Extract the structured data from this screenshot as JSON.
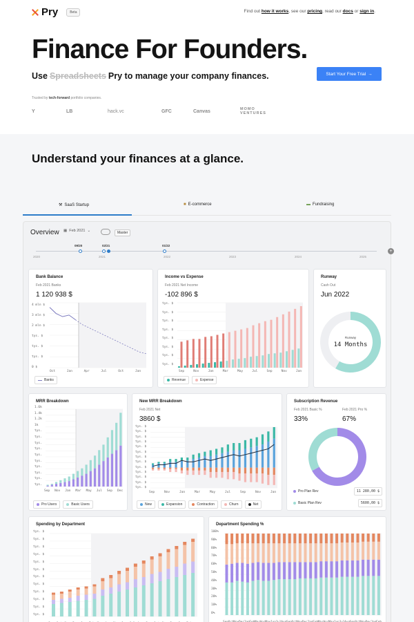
{
  "nav": {
    "logo": "Pry",
    "beta": "Beta",
    "links_prefix": "Find out",
    "how_it_works": "how it works",
    "see": ", see our",
    "pricing": "pricing",
    "read": ", read our",
    "docs": "docs",
    "or": "or",
    "sign_in": "sign in",
    "end": "."
  },
  "hero": {
    "title": "Finance For Founders.",
    "sub_use": "Use",
    "sub_strike": "Spreadsheets",
    "sub_rest": "Pry to manage your company finances.",
    "cta": "Start Your Free Trial",
    "cta_arrow": "→",
    "trusted_pre": "Trusted by",
    "trusted_bold": "tech-forward",
    "trusted_post": "portfolio companies.",
    "logos": [
      "Y",
      "LB",
      "hack.vc",
      "GFC",
      "Canvas",
      "MOMO VENTURES"
    ]
  },
  "section": {
    "title": "Understand your finances at a glance.",
    "tabs": [
      {
        "label": "SaaS Startup",
        "icon": "tools-icon"
      },
      {
        "label": "E-commerce",
        "icon": "box-icon"
      },
      {
        "label": "Fundraising",
        "icon": "money-icon"
      }
    ]
  },
  "app": {
    "overview": "Overview",
    "date": "Feb 2021",
    "master": "Master",
    "timeline": {
      "markers": [
        "09/20",
        "02/21",
        "01/22"
      ],
      "years": [
        "2020",
        "2021",
        "2022",
        "2023",
        "2024",
        "2025"
      ]
    }
  },
  "cards": {
    "bank": {
      "title": "Bank Balance",
      "sub": "Feb 2021 Banks",
      "value": "1 120 938 $",
      "yticks": [
        "4 mln $",
        "3 mln $",
        "2 mln $",
        "tys. $",
        "tys. $",
        "tys. $",
        "0 $"
      ],
      "xticks": [
        "Oct",
        "Jan",
        "Apr",
        "Jul",
        "Oct",
        "Jan"
      ],
      "legend": [
        "Banks"
      ],
      "chart_data": {
        "type": "line",
        "x": [
          "Oct",
          "Nov",
          "Dec",
          "Jan",
          "Feb",
          "Mar",
          "Apr",
          "May",
          "Jun",
          "Jul",
          "Aug",
          "Sep",
          "Oct",
          "Nov",
          "Dec",
          "Jan"
        ],
        "values": [
          3.9,
          3.5,
          3.3,
          3.4,
          3.1,
          2.8,
          2.6,
          2.4,
          2.2,
          2.0,
          1.8,
          1.6,
          1.4,
          1.2,
          1.0,
          0.9
        ],
        "ylim": [
          0,
          4.2
        ]
      }
    },
    "income": {
      "title": "Income vs Expense",
      "sub": "Feb 2021 Net Income",
      "value": "-102 896 $",
      "yticks": [
        "tys. $",
        "tys. $",
        "tys. $",
        "tys. $",
        "tys. $",
        "tys. $",
        "tys. $",
        "tys. $"
      ],
      "xticks": [
        "Sep",
        "Nov",
        "Jan",
        "Mar",
        "May",
        "Jul",
        "Sep",
        "Nov",
        "Jan"
      ],
      "legend": [
        "Revenue",
        "Expense"
      ],
      "chart_data": {
        "type": "bar",
        "series": [
          {
            "name": "Revenue",
            "values": [
              2,
              3,
              4,
              5,
              6,
              7,
              8,
              9,
              10,
              12,
              13,
              14,
              16,
              17,
              18,
              20,
              21,
              22,
              24,
              26,
              28
            ]
          },
          {
            "name": "Expense",
            "values": [
              38,
              40,
              42,
              42,
              45,
              46,
              48,
              50,
              52,
              54,
              56,
              58,
              62,
              65,
              68,
              70,
              74,
              78,
              82,
              86,
              90
            ]
          }
        ],
        "ylim": [
          0,
          95
        ]
      }
    },
    "runway": {
      "title": "Runway",
      "sub": "Cash Out",
      "value": "Jun 2022",
      "donut_label": "Runway",
      "donut_value": "14 Months",
      "chart_data": {
        "type": "pie",
        "values": [
          14,
          10
        ]
      }
    },
    "mrr": {
      "title": "MRR Breakdown",
      "yticks": [
        "1.6k",
        "1.4k",
        "1.2k",
        "1k",
        "tys.",
        "tys.",
        "tys.",
        "tys.",
        "tys.",
        "tys.",
        "tys.",
        "tys.",
        "tys.",
        "tys."
      ],
      "xticks": [
        "Sep",
        "Nov",
        "Jan",
        "Mar",
        "May",
        "Jul",
        "Sep",
        "Dec"
      ],
      "legend": [
        "Pro Users",
        "Basic Users"
      ],
      "chart_data": {
        "type": "bar",
        "series": [
          {
            "name": "Pro Users",
            "values": [
              1,
              2,
              3,
              4,
              5,
              6,
              8,
              10,
              12,
              14,
              17,
              20,
              24,
              28,
              32,
              36,
              40,
              45
            ]
          },
          {
            "name": "Basic Users",
            "values": [
              1,
              1,
              2,
              3,
              4,
              5,
              6,
              7,
              8,
              10,
              12,
              14,
              16,
              18,
              22,
              26,
              30,
              36
            ]
          }
        ],
        "ylim": [
          0,
          85
        ]
      }
    },
    "newmrr": {
      "title": "New MRR Breakdown",
      "sub": "Feb 2021 Net",
      "value": "3860 $",
      "xticks": [
        "Sep",
        "Nov",
        "Jan",
        "Mar",
        "May",
        "Jul",
        "Sep",
        "Nov",
        "Jan"
      ],
      "yticks": [
        "tys. $",
        "tys. $",
        "tys. $",
        "tys. $",
        "tys. $",
        "tys. $",
        "tys. $",
        "tys. $",
        "tys. $",
        "tys. $",
        "tys. $",
        "tys. $",
        "tys. $"
      ],
      "legend": [
        "New",
        "Expansion",
        "Contraction",
        "Churn",
        "Net"
      ],
      "chart_data": {
        "type": "bar",
        "series": [
          {
            "name": "New",
            "values": [
              2,
              3,
              3,
              4,
              4,
              5,
              5,
              6,
              7,
              8,
              8,
              9,
              10,
              11,
              12,
              12,
              13,
              14,
              15,
              16,
              18,
              20
            ]
          },
          {
            "name": "Expansion",
            "values": [
              1,
              1,
              1,
              2,
              2,
              2,
              2,
              3,
              3,
              3,
              4,
              4,
              4,
              5,
              5,
              5,
              6,
              6,
              6,
              7,
              7,
              8
            ]
          },
          {
            "name": "Contraction",
            "values": [
              -1,
              -1,
              -1,
              -1,
              -1,
              -2,
              -2,
              -2,
              -2,
              -2,
              -3,
              -3,
              -3,
              -3,
              -3,
              -4,
              -4,
              -4,
              -4,
              -4,
              -5,
              -5
            ]
          },
          {
            "name": "Churn",
            "values": [
              -1,
              -1,
              -1,
              -2,
              -2,
              -2,
              -3,
              -3,
              -3,
              -3,
              -4,
              -4,
              -4,
              -5,
              -5,
              -5,
              -6,
              -6,
              -6,
              -7,
              -7,
              -7
            ]
          },
          {
            "name": "Net",
            "values": [
              1,
              2,
              2,
              3,
              3,
              5,
              4,
              4,
              5,
              6,
              5,
              6,
              7,
              8,
              9,
              8,
              9,
              10,
              11,
              12,
              13,
              16
            ]
          }
        ],
        "ylim": [
          -14,
          28
        ]
      }
    },
    "subs": {
      "title": "Subscription Revenue",
      "sub1": "Feb 2021 Basic %",
      "sub2": "Feb 2021 Pro %",
      "val1": "33%",
      "val2": "67%",
      "rows": [
        {
          "label": "Pro Plan Rev",
          "amount": "11 280,00 $"
        },
        {
          "label": "Basic Plan Rev",
          "amount": "5600,00 $"
        }
      ],
      "chart_data": {
        "type": "pie",
        "values": [
          67,
          33
        ],
        "labels": [
          "Pro Plan Rev",
          "Basic Plan Rev"
        ]
      }
    },
    "spending": {
      "title": "Spending by Department",
      "xticks": [
        "Sep",
        "Oct",
        "Nov",
        "Dec",
        "Jan",
        "Feb",
        "Mar",
        "Apr",
        "May",
        "Jun",
        "Jul",
        "Aug",
        "Sep",
        "Oct",
        "Nov",
        "Dec",
        "Jan",
        "Feb"
      ],
      "yticks": [
        "tys. $",
        "tys. $",
        "tys. $",
        "tys. $",
        "tys. $",
        "tys. $",
        "tys. $",
        "tys. $",
        "tys. $",
        "tys. $",
        "tys. $",
        "tys. $"
      ],
      "chart_data": {
        "type": "bar",
        "series": [
          {
            "name": "",
            "values": [
              12,
              13,
              14,
              15,
              16,
              17,
              20,
              22,
              24,
              26,
              28,
              30,
              32,
              34,
              36,
              38,
              40,
              42
            ]
          },
          {
            "name": "",
            "values": [
              4,
              4,
              4,
              5,
              5,
              5,
              6,
              6,
              7,
              7,
              8,
              8,
              9,
              9,
              10,
              10,
              11,
              11
            ]
          },
          {
            "name": "",
            "values": [
              5,
              5,
              6,
              6,
              6,
              7,
              8,
              9,
              10,
              11,
              12,
              13,
              14,
              15,
              16,
              17,
              18,
              19
            ]
          },
          {
            "name": "",
            "values": [
              2,
              2,
              2,
              2,
              2,
              2,
              3,
              3,
              3,
              3,
              3,
              3,
              3,
              3,
              3,
              3,
              3,
              3
            ]
          }
        ],
        "ylim": [
          0,
          80
        ]
      }
    },
    "dept": {
      "title": "Department Spending %",
      "yticks": [
        "100%",
        "90%",
        "80%",
        "70%",
        "60%",
        "50%",
        "40%",
        "30%",
        "20%",
        "10%",
        "0%"
      ],
      "xticks": [
        "Sep",
        "Oct",
        "Nov",
        "Dec",
        "Jan",
        "Feb",
        "Mar",
        "Apr",
        "May",
        "Jun",
        "Jul",
        "Aug",
        "Sep",
        "Oct",
        "Nov",
        "Dec",
        "Jan",
        "Feb",
        "Mar",
        "Apr",
        "May",
        "Jun",
        "Jul",
        "Aug",
        "Sep",
        "Oct",
        "Nov",
        "Dec",
        "Jan",
        "Feb"
      ],
      "chart_data": {
        "type": "bar",
        "series": [
          {
            "name": "",
            "values": [
              40,
              40,
              42,
              41,
              40,
              42,
              43,
              42,
              42,
              43,
              44,
              44,
              44,
              44,
              45,
              45,
              45,
              45,
              46,
              46,
              46,
              46,
              47,
              47,
              47,
              47,
              48,
              48,
              48,
              48
            ]
          },
          {
            "name": "",
            "values": [
              22,
              23,
              22,
              23,
              23,
              22,
              22,
              22,
              22,
              21,
              21,
              21,
              21,
              21,
              20,
              20,
              20,
              20,
              20,
              20,
              20,
              20,
              20,
              20,
              20,
              20,
              20,
              20,
              20,
              20
            ]
          },
          {
            "name": "",
            "values": [
              25,
              24,
              24,
              24,
              25,
              24,
              23,
              24,
              24,
              24,
              23,
              23,
              23,
              23,
              23,
              23,
              23,
              23,
              22,
              22,
              22,
              22,
              22,
              22,
              22,
              22,
              22,
              22,
              22,
              22
            ]
          },
          {
            "name": "",
            "values": [
              13,
              13,
              12,
              12,
              12,
              12,
              12,
              12,
              12,
              12,
              12,
              12,
              12,
              12,
              12,
              12,
              12,
              12,
              12,
              12,
              12,
              12,
              11,
              11,
              11,
              11,
              10,
              10,
              10,
              10
            ]
          }
        ],
        "ylim": [
          0,
          100
        ]
      }
    }
  },
  "colors": {
    "teal": "#9fdcd4",
    "teal_dark": "#3bb8a6",
    "purple": "#a28be8",
    "purple_light": "#c9bdf2",
    "pink": "#f4b7b4",
    "red": "#e07d76",
    "blue": "#5aa3dc",
    "orange": "#e4875f",
    "peach": "#f4c3a8",
    "accent": "#3b82f6"
  }
}
